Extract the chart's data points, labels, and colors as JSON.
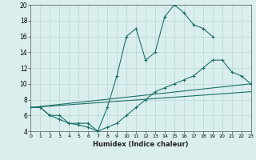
{
  "xlabel": "Humidex (Indice chaleur)",
  "xlim": [
    0,
    23
  ],
  "ylim": [
    4,
    20
  ],
  "xticks": [
    0,
    1,
    2,
    3,
    4,
    5,
    6,
    7,
    8,
    9,
    10,
    11,
    12,
    13,
    14,
    15,
    16,
    17,
    18,
    19,
    20,
    21,
    22,
    23
  ],
  "yticks": [
    4,
    6,
    8,
    10,
    12,
    14,
    16,
    18,
    20
  ],
  "background_color": "#daeeed",
  "grid_color": "#b5d9d6",
  "line_color": "#1e7068",
  "line1_x": [
    0,
    1,
    2,
    3,
    4,
    5,
    6,
    7,
    8,
    9,
    10,
    11,
    12,
    13,
    14,
    15,
    16,
    17,
    18,
    19
  ],
  "line1_y": [
    7,
    7,
    6,
    6,
    5,
    5,
    5,
    4,
    7,
    11,
    16,
    17,
    13,
    14,
    18.5,
    20,
    19,
    17.5,
    17,
    16
  ],
  "line2_x": [
    0,
    1,
    2,
    3,
    4,
    5,
    6,
    7,
    8,
    9,
    10,
    11,
    12,
    13,
    14,
    15,
    16,
    17,
    18,
    19,
    20,
    21,
    22,
    23
  ],
  "line2_y": [
    7,
    7,
    6,
    5.5,
    5,
    4.8,
    4.5,
    4,
    4.5,
    5,
    6,
    7,
    8,
    9,
    9.5,
    10,
    10.5,
    11,
    12,
    13,
    13,
    11.5,
    11,
    10
  ],
  "line3_x": [
    0,
    23
  ],
  "line3_y": [
    7,
    10
  ],
  "line4_x": [
    0,
    23
  ],
  "line4_y": [
    7,
    9
  ]
}
